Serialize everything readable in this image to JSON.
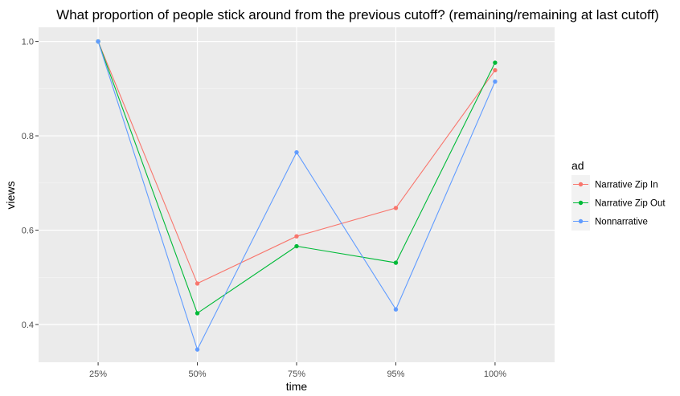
{
  "chart_data": {
    "type": "line",
    "title": "What proportion of people stick around from the previous cutoff? (remaining/remaining at last cutoff)",
    "xlabel": "time",
    "ylabel": "views",
    "categories": [
      "25%",
      "50%",
      "75%",
      "95%",
      "100%"
    ],
    "yticks": [
      "0.4",
      "0.6",
      "0.8",
      "1.0"
    ],
    "ylim": [
      0.32,
      1.03
    ],
    "grid": true,
    "legend": {
      "title": "ad",
      "position": "right"
    },
    "series": [
      {
        "name": "Narrative Zip In",
        "color": "#F8766D",
        "values": [
          1.0,
          0.487,
          0.587,
          0.647,
          0.939
        ]
      },
      {
        "name": "Narrative Zip Out",
        "color": "#00BA38",
        "values": [
          1.0,
          0.424,
          0.566,
          0.531,
          0.955
        ]
      },
      {
        "name": "Nonnarrative",
        "color": "#619CFF",
        "values": [
          1.0,
          0.347,
          0.765,
          0.432,
          0.915
        ]
      }
    ]
  }
}
